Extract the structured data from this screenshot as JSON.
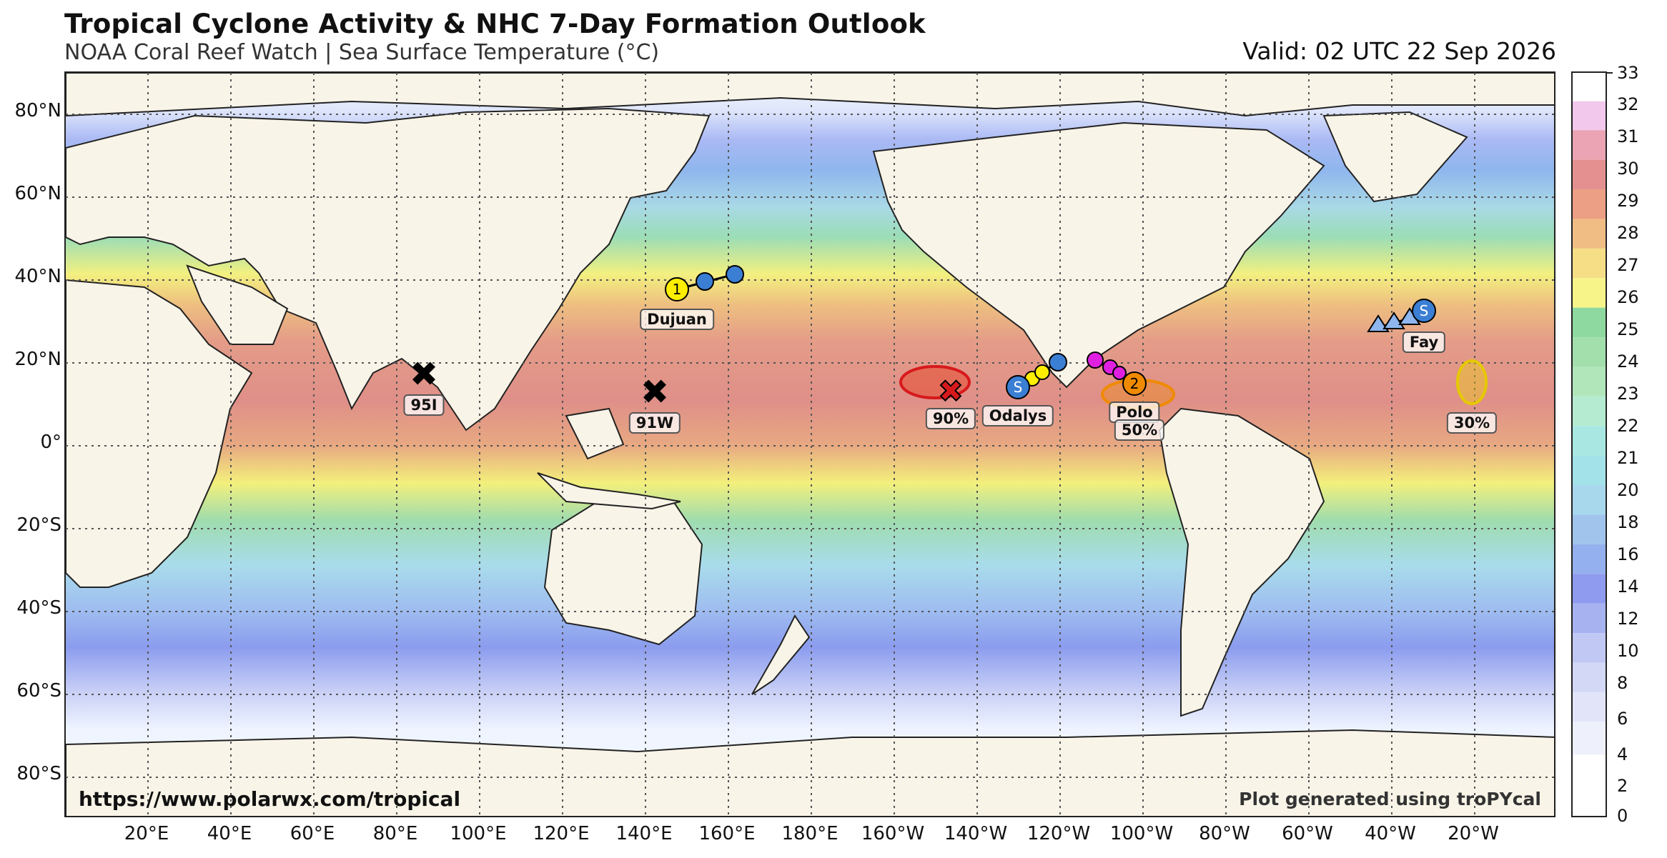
{
  "header": {
    "title": "Tropical Cyclone Activity & NHC 7-Day Formation Outlook",
    "subtitle": "NOAA Coral Reef Watch | Sea Surface Temperature (°C)",
    "valid": "Valid: 02 UTC 22 Sep 2026"
  },
  "map": {
    "lat_labels": [
      "80°N",
      "60°N",
      "40°N",
      "20°N",
      "0°",
      "20°S",
      "40°S",
      "60°S",
      "80°S"
    ],
    "lon_labels": [
      "20°E",
      "40°E",
      "60°E",
      "80°E",
      "100°E",
      "120°E",
      "140°E",
      "160°E",
      "180°E",
      "160°W",
      "140°W",
      "120°W",
      "100°W",
      "80°W",
      "60°W",
      "40°W",
      "20°W"
    ],
    "gridlines": true
  },
  "colorbar": {
    "label": "Sea Surface Temperature (°C)",
    "ticks": [
      "0",
      "2",
      "4",
      "6",
      "8",
      "10",
      "12",
      "14",
      "16",
      "18",
      "20",
      "21",
      "22",
      "23",
      "24",
      "25",
      "26",
      "27",
      "28",
      "29",
      "30",
      "31",
      "32",
      "33"
    ]
  },
  "storms": [
    {
      "name": "Dujuan",
      "marker": "1",
      "type": "tropical storm"
    },
    {
      "name": "Odalys",
      "marker": "S",
      "type": "subtropical"
    },
    {
      "name": "Polo",
      "marker": "2",
      "type": "hurricane"
    },
    {
      "name": "Fay",
      "marker": "S",
      "type": "subtropical"
    }
  ],
  "invests": [
    {
      "name": "95I"
    },
    {
      "name": "91W"
    }
  ],
  "outlook_areas": [
    {
      "label": "90%",
      "color": "#d7191c"
    },
    {
      "label": "50%",
      "color": "#f08a00"
    },
    {
      "label": "30%",
      "color": "#e6c800"
    }
  ],
  "footer": {
    "url": "https://www.polarwx.com/tropical",
    "credit": "Plot generated using troPYcal"
  }
}
